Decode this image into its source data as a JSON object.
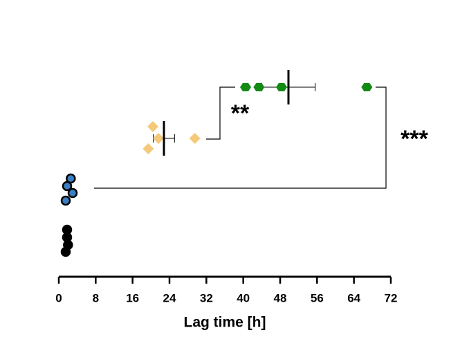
{
  "chart_data": {
    "type": "scatter",
    "xlabel": "Lag time [h]",
    "xlim": [
      0,
      72
    ],
    "xticks": [
      0,
      8,
      16,
      24,
      32,
      40,
      48,
      56,
      64,
      72
    ],
    "series": [
      {
        "color": "#000000",
        "marker": "circle",
        "values": [
          1.8,
          1.8,
          2.0,
          1.5
        ]
      },
      {
        "color": "#3a7fc1",
        "marker": "circle",
        "values": [
          2.6,
          1.8,
          3.0,
          1.5
        ]
      },
      {
        "color": "#f5c97a",
        "marker": "diamond",
        "values": [
          20.4,
          21.6,
          19.4,
          29.5
        ],
        "mean": 22.8,
        "sd": 2.3
      },
      {
        "color": "#138a13",
        "marker": "hexagon",
        "values": [
          40.5,
          43.4,
          48.3,
          66.8
        ],
        "mean": 49.8,
        "sd": 5.8
      }
    ],
    "annotations": [
      "**",
      "***"
    ]
  }
}
